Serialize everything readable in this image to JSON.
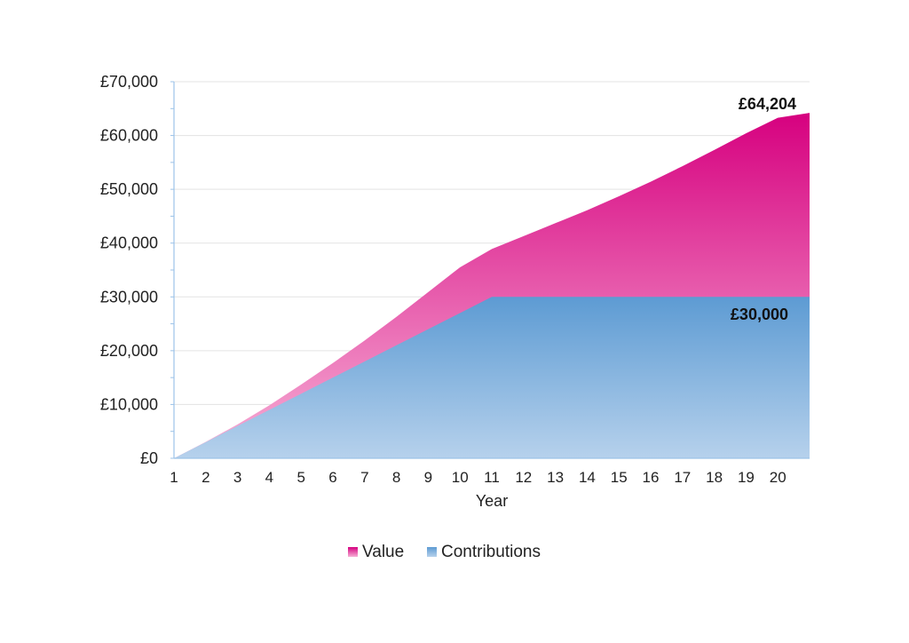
{
  "chart_data": {
    "type": "area",
    "xlabel": "Year",
    "ylabel": "",
    "x": [
      1,
      2,
      3,
      4,
      5,
      6,
      7,
      8,
      9,
      10,
      11,
      12,
      13,
      14,
      15,
      16,
      17,
      18,
      19,
      20,
      21
    ],
    "x_tick_labels": [
      "1",
      "2",
      "3",
      "4",
      "5",
      "6",
      "7",
      "8",
      "9",
      "10",
      "11",
      "12",
      "13",
      "14",
      "15",
      "16",
      "17",
      "18",
      "19",
      "20"
    ],
    "y_tick_labels": [
      "£0",
      "£10,000",
      "£20,000",
      "£30,000",
      "£40,000",
      "£50,000",
      "£60,000",
      "£70,000"
    ],
    "ylim": [
      0,
      70000
    ],
    "grid": true,
    "legend_placement": "bottom-center",
    "series": [
      {
        "name": "Value",
        "color": "#d6007f",
        "values": [
          0,
          3050,
          6300,
          9850,
          13700,
          17700,
          21900,
          26300,
          30900,
          35500,
          38900,
          41300,
          43700,
          46100,
          48700,
          51400,
          54300,
          57300,
          60400,
          63300,
          64204
        ]
      },
      {
        "name": "Contributions",
        "color": "#5b9bd5",
        "values": [
          0,
          3000,
          6000,
          9000,
          12000,
          15000,
          18000,
          21000,
          24000,
          27000,
          30000,
          30000,
          30000,
          30000,
          30000,
          30000,
          30000,
          30000,
          30000,
          30000,
          30000
        ]
      }
    ],
    "annotations": [
      {
        "text": "£64,204",
        "series": "Value"
      },
      {
        "text": "£30,000",
        "series": "Contributions"
      }
    ]
  }
}
